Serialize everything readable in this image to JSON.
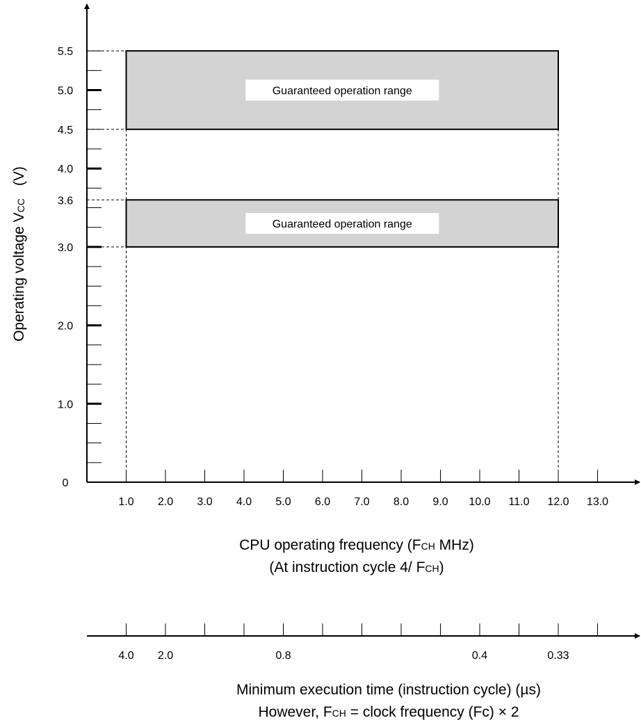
{
  "chart_data": {
    "type": "area",
    "ylabel": "Operating voltage V",
    "ylabel_sub": "CC",
    "ylabel_unit": "(V)",
    "y_ticks": [
      "0",
      "1.0",
      "2.0",
      "3.0",
      "3.6",
      "4.0",
      "4.5",
      "5.0",
      "5.5"
    ],
    "y_tick_values": [
      0,
      1.0,
      2.0,
      3.0,
      3.6,
      4.0,
      4.5,
      5.0,
      5.5
    ],
    "ylim": [
      0,
      5.5
    ],
    "x_ticks": [
      "1.0",
      "2.0",
      "3.0",
      "4.0",
      "5.0",
      "6.0",
      "7.0",
      "8.0",
      "9.0",
      "10.0",
      "11.0",
      "12.0",
      "13.0"
    ],
    "x_tick_values": [
      1,
      2,
      3,
      4,
      5,
      6,
      7,
      8,
      9,
      10,
      11,
      12,
      13
    ],
    "xlim": [
      0,
      13
    ],
    "xlabel_line1": {
      "pre": "CPU operating frequency (F",
      "sub": "CH",
      "post": " MHz)"
    },
    "xlabel_line2": {
      "pre": "(At instruction cycle 4/ F",
      "sub": "CH",
      "post": ")"
    },
    "regions": [
      {
        "label": "Guaranteed operation range",
        "x_range": [
          1.0,
          12.0
        ],
        "y_range": [
          4.5,
          5.5
        ],
        "color": "#d3d3d3"
      },
      {
        "label": "Guaranteed operation range",
        "x_range": [
          1.0,
          12.0
        ],
        "y_range": [
          3.0,
          3.6
        ],
        "color": "#d3d3d3"
      }
    ],
    "secondary_axis": {
      "ticks": [
        {
          "at_freq": 1.0,
          "label": "4.0"
        },
        {
          "at_freq": 2.0,
          "label": "2.0"
        },
        {
          "at_freq": 5.0,
          "label": "0.8"
        },
        {
          "at_freq": 10.0,
          "label": "0.4"
        },
        {
          "at_freq": 12.0,
          "label": "0.33"
        }
      ],
      "label_line1": "Minimum execution time (instruction cycle) (µs)",
      "label_line2": {
        "pre": "However, F",
        "sub": "CH",
        "post": " = clock frequency (Fc) × 2"
      }
    },
    "grid": false
  }
}
